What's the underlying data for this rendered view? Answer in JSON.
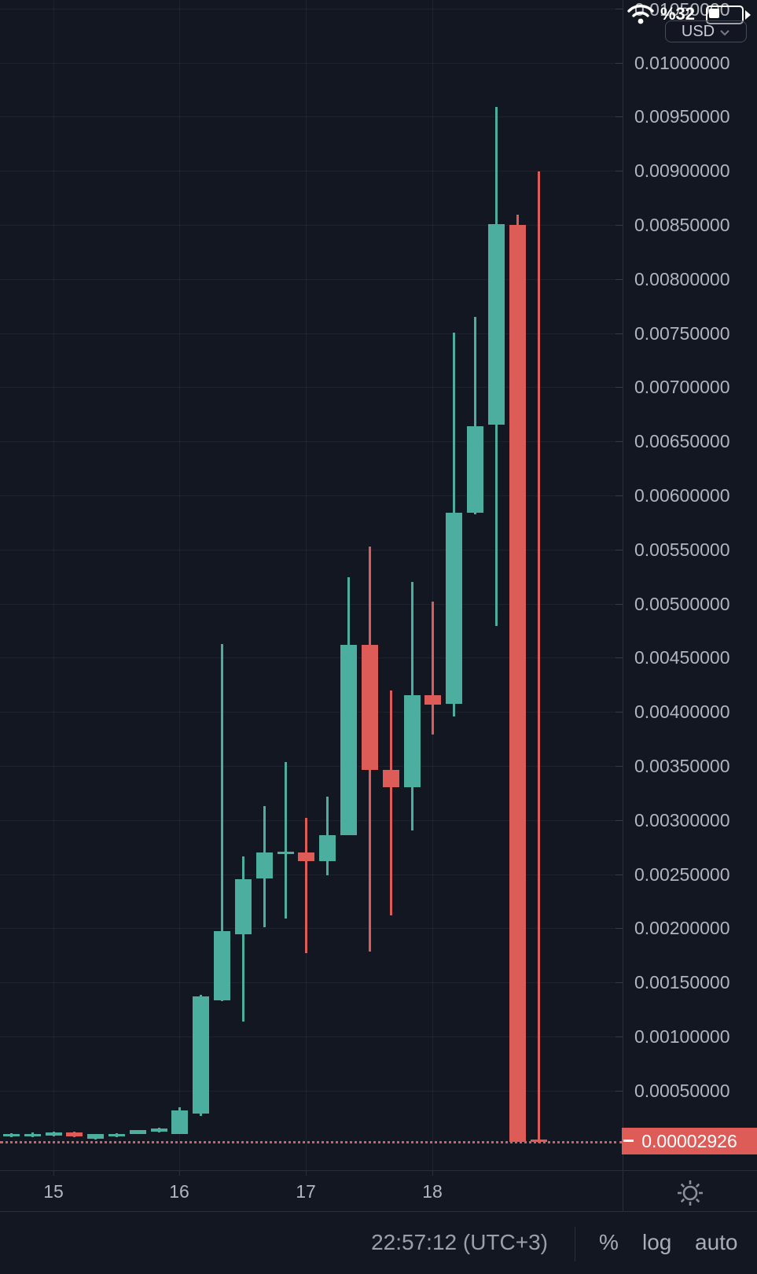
{
  "status_bar": {
    "battery_percent_text": "%32",
    "icons": [
      "wifi-icon",
      "battery-icon"
    ]
  },
  "currency_button": {
    "label": "USD"
  },
  "bottom_toolbar": {
    "clock_text": "22:57:12 (UTC+3)",
    "percent_button": "%",
    "log_button": "log",
    "auto_button": "auto"
  },
  "colors": {
    "background": "#131722",
    "up": "#4cae9e",
    "down": "#dd5c57",
    "axis_text": "#b2b5be",
    "muted_text": "#9aa0ab",
    "border": "#2a2e39",
    "price_badge_bg": "#dd5c57",
    "price_badge_text": "#ffffff"
  },
  "chart_data": {
    "type": "candlestick",
    "title": "",
    "legend_position": "none",
    "grid": true,
    "y_axis": {
      "side": "right",
      "range": [
        0.0,
        0.0105
      ],
      "tick_step": 0.0005,
      "tick_labels": [
        "0.01050000",
        "0.01000000",
        "0.00950000",
        "0.00900000",
        "0.00850000",
        "0.00800000",
        "0.00750000",
        "0.00700000",
        "0.00650000",
        "0.00600000",
        "0.00550000",
        "0.00500000",
        "0.00450000",
        "0.00400000",
        "0.00350000",
        "0.00300000",
        "0.00250000",
        "0.00200000",
        "0.00150000",
        "0.00100000",
        "0.00050000"
      ]
    },
    "x_axis": {
      "day_labels": [
        {
          "text": "15",
          "candle_index": 2
        },
        {
          "text": "16",
          "candle_index": 8
        },
        {
          "text": "17",
          "candle_index": 14
        },
        {
          "text": "18",
          "candle_index": 20
        }
      ]
    },
    "current_price": 2.926e-05,
    "current_price_label": "0.00002926",
    "candles": [
      {
        "o": 8e-05,
        "h": 0.00011,
        "l": 7e-05,
        "c": 0.000105
      },
      {
        "o": 8e-05,
        "h": 0.000115,
        "l": 7.5e-05,
        "c": 0.000105
      },
      {
        "o": 9e-05,
        "h": 0.00012,
        "l": 8e-05,
        "c": 0.000115
      },
      {
        "o": 0.000115,
        "h": 0.000125,
        "l": 7e-05,
        "c": 8e-05
      },
      {
        "o": 6e-05,
        "h": 0.000105,
        "l": 5e-05,
        "c": 0.0001
      },
      {
        "o": 8e-05,
        "h": 0.00011,
        "l": 7e-05,
        "c": 0.000105
      },
      {
        "o": 0.000105,
        "h": 0.00014,
        "l": 0.0001,
        "c": 0.000135
      },
      {
        "o": 0.00012,
        "h": 0.00016,
        "l": 0.000115,
        "c": 0.00015
      },
      {
        "o": 0.0001,
        "h": 0.00035,
        "l": 0.0001,
        "c": 0.00032
      },
      {
        "o": 0.00029,
        "h": 0.00139,
        "l": 0.00027,
        "c": 0.00137
      },
      {
        "o": 0.00134,
        "h": 0.00463,
        "l": 0.00133,
        "c": 0.00198
      },
      {
        "o": 0.00195,
        "h": 0.00267,
        "l": 0.00114,
        "c": 0.00246
      },
      {
        "o": 0.00246,
        "h": 0.00313,
        "l": 0.00201,
        "c": 0.0027
      },
      {
        "o": 0.00269,
        "h": 0.00354,
        "l": 0.00209,
        "c": 0.00271
      },
      {
        "o": 0.0027,
        "h": 0.00302,
        "l": 0.00177,
        "c": 0.00262
      },
      {
        "o": 0.00262,
        "h": 0.00322,
        "l": 0.00249,
        "c": 0.00286
      },
      {
        "o": 0.00286,
        "h": 0.00525,
        "l": 0.00286,
        "c": 0.00462
      },
      {
        "o": 0.00462,
        "h": 0.00553,
        "l": 0.00179,
        "c": 0.00347
      },
      {
        "o": 0.00347,
        "h": 0.0042,
        "l": 0.00212,
        "c": 0.00331
      },
      {
        "o": 0.00331,
        "h": 0.0052,
        "l": 0.00291,
        "c": 0.00416
      },
      {
        "o": 0.00416,
        "h": 0.00502,
        "l": 0.00379,
        "c": 0.00407
      },
      {
        "o": 0.00408,
        "h": 0.00751,
        "l": 0.00396,
        "c": 0.00584
      },
      {
        "o": 0.00584,
        "h": 0.00765,
        "l": 0.00583,
        "c": 0.00664
      },
      {
        "o": 0.00666,
        "h": 0.00959,
        "l": 0.0048,
        "c": 0.00851
      },
      {
        "o": 0.0085,
        "h": 0.0086,
        "l": 2.79e-05,
        "c": 2.926e-05
      },
      {
        "o": 5e-05,
        "h": 0.009,
        "l": 2.2e-05,
        "c": 2.926e-05
      }
    ]
  }
}
